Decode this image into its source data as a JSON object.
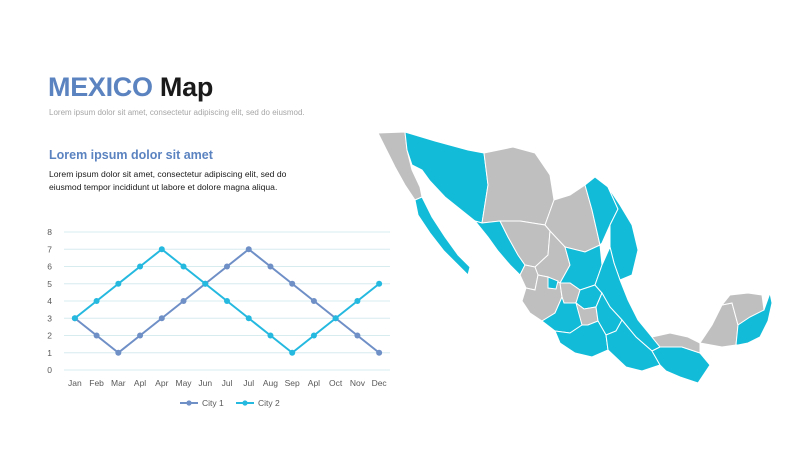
{
  "slide": {
    "title_accent": "MEXICO",
    "title_rest": "Map",
    "subtitle": "Lorem ipsum dolor sit amet, consectetur adipiscing elit, sed do eiusmod.",
    "section_heading": "Lorem ipsum dolor sit amet",
    "body": "Lorem ipsum dolor sit amet, consectetur adipiscing elit, sed do eiusmod tempor incididunt ut labore et dolore magna aliqua."
  },
  "colors": {
    "title_accent": "#5b83c0",
    "series_city1": "#6f8fc7",
    "series_city2": "#25b9e0",
    "map_highlight": "#12bbd8",
    "map_base": "#bfbfbf"
  },
  "chart_data": {
    "type": "line",
    "title": "",
    "xlabel": "",
    "ylabel": "",
    "categories": [
      "Jan",
      "Feb",
      "Mar",
      "Apl",
      "Apr",
      "May",
      "Jun",
      "Jul",
      "Jul",
      "Aug",
      "Sep",
      "Apl",
      "Oct",
      "Nov",
      "Dec"
    ],
    "ylim": [
      0,
      8
    ],
    "yticks": [
      0,
      1,
      2,
      3,
      4,
      5,
      6,
      7,
      8
    ],
    "grid": true,
    "legend_position": "bottom",
    "series": [
      {
        "name": "City 1",
        "values": [
          3,
          2,
          1,
          2,
          3,
          4,
          5,
          6,
          7,
          6,
          5,
          4,
          3,
          2,
          1
        ]
      },
      {
        "name": "City 2",
        "values": [
          3,
          4,
          5,
          6,
          7,
          6,
          5,
          4,
          3,
          2,
          1,
          2,
          3,
          4,
          5
        ]
      }
    ]
  },
  "map": {
    "region": "Mexico",
    "highlight_color": "#12bbd8",
    "base_color": "#bfbfbf"
  }
}
